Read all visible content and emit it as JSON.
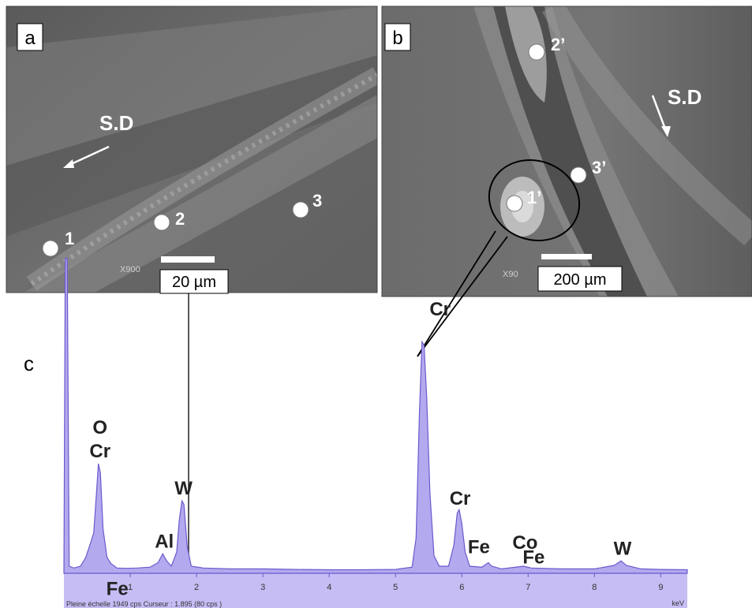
{
  "panels": {
    "a": {
      "letter": "a",
      "direction_label": "S.D",
      "magnification": "X900",
      "scale_bar": "20 µm",
      "points": [
        "1",
        "2",
        "3"
      ]
    },
    "b": {
      "letter": "b",
      "direction_label": "S.D",
      "magnification": "X90",
      "scale_bar": "200 µm",
      "points": [
        "1’",
        "2’",
        "3’"
      ]
    },
    "c": {
      "letter": "c"
    }
  },
  "chart_data": {
    "type": "area",
    "xlabel": "keV",
    "xlim": [
      0,
      9.4
    ],
    "ylim": [
      0,
      1949
    ],
    "xticks": [
      1,
      2,
      3,
      4,
      5,
      6,
      7,
      8,
      9
    ],
    "footer": "Pleine échelle 1949 cps  Curseur : 1.895  (80 cps )",
    "cursor_kev": 1.895,
    "fill_color": "#b3a9ee",
    "line_color": "#6a5acd",
    "spectrum": [
      [
        0.0,
        0
      ],
      [
        0.02,
        1780
      ],
      [
        0.05,
        1780
      ],
      [
        0.08,
        40
      ],
      [
        0.15,
        30
      ],
      [
        0.25,
        40
      ],
      [
        0.33,
        90
      ],
      [
        0.4,
        170
      ],
      [
        0.45,
        230
      ],
      [
        0.49,
        450
      ],
      [
        0.52,
        620
      ],
      [
        0.55,
        570
      ],
      [
        0.59,
        250
      ],
      [
        0.65,
        90
      ],
      [
        0.71,
        55
      ],
      [
        0.8,
        30
      ],
      [
        0.95,
        28
      ],
      [
        1.1,
        30
      ],
      [
        1.3,
        35
      ],
      [
        1.42,
        60
      ],
      [
        1.49,
        110
      ],
      [
        1.55,
        70
      ],
      [
        1.62,
        40
      ],
      [
        1.7,
        120
      ],
      [
        1.74,
        300
      ],
      [
        1.78,
        410
      ],
      [
        1.81,
        390
      ],
      [
        1.86,
        150
      ],
      [
        1.92,
        40
      ],
      [
        2.1,
        30
      ],
      [
        2.5,
        25
      ],
      [
        3.0,
        25
      ],
      [
        3.5,
        22
      ],
      [
        4.0,
        20
      ],
      [
        4.5,
        20
      ],
      [
        5.0,
        22
      ],
      [
        5.25,
        35
      ],
      [
        5.31,
        200
      ],
      [
        5.36,
        900
      ],
      [
        5.4,
        1310
      ],
      [
        5.43,
        1290
      ],
      [
        5.47,
        1000
      ],
      [
        5.52,
        450
      ],
      [
        5.58,
        100
      ],
      [
        5.66,
        40
      ],
      [
        5.8,
        40
      ],
      [
        5.88,
        160
      ],
      [
        5.93,
        340
      ],
      [
        5.96,
        360
      ],
      [
        6.0,
        280
      ],
      [
        6.05,
        120
      ],
      [
        6.12,
        40
      ],
      [
        6.3,
        35
      ],
      [
        6.4,
        60
      ],
      [
        6.45,
        40
      ],
      [
        6.6,
        25
      ],
      [
        6.93,
        40
      ],
      [
        7.05,
        30
      ],
      [
        7.5,
        25
      ],
      [
        8.0,
        25
      ],
      [
        8.3,
        45
      ],
      [
        8.4,
        70
      ],
      [
        8.48,
        45
      ],
      [
        8.7,
        25
      ],
      [
        9.0,
        22
      ],
      [
        9.4,
        20
      ]
    ],
    "peak_labels": [
      {
        "text": "O",
        "kev": 0.52
      },
      {
        "text": "Cr",
        "kev": 0.52
      },
      {
        "text": "Fe",
        "kev": 0.71
      },
      {
        "text": "Al",
        "kev": 1.49
      },
      {
        "text": "W",
        "kev": 1.78
      },
      {
        "text": "Cr",
        "kev": 5.41
      },
      {
        "text": "Cr",
        "kev": 5.95
      },
      {
        "text": "Fe",
        "kev": 6.4
      },
      {
        "text": "Co",
        "kev": 6.93
      },
      {
        "text": "Fe",
        "kev": 7.06
      },
      {
        "text": "W",
        "kev": 8.4
      }
    ]
  }
}
